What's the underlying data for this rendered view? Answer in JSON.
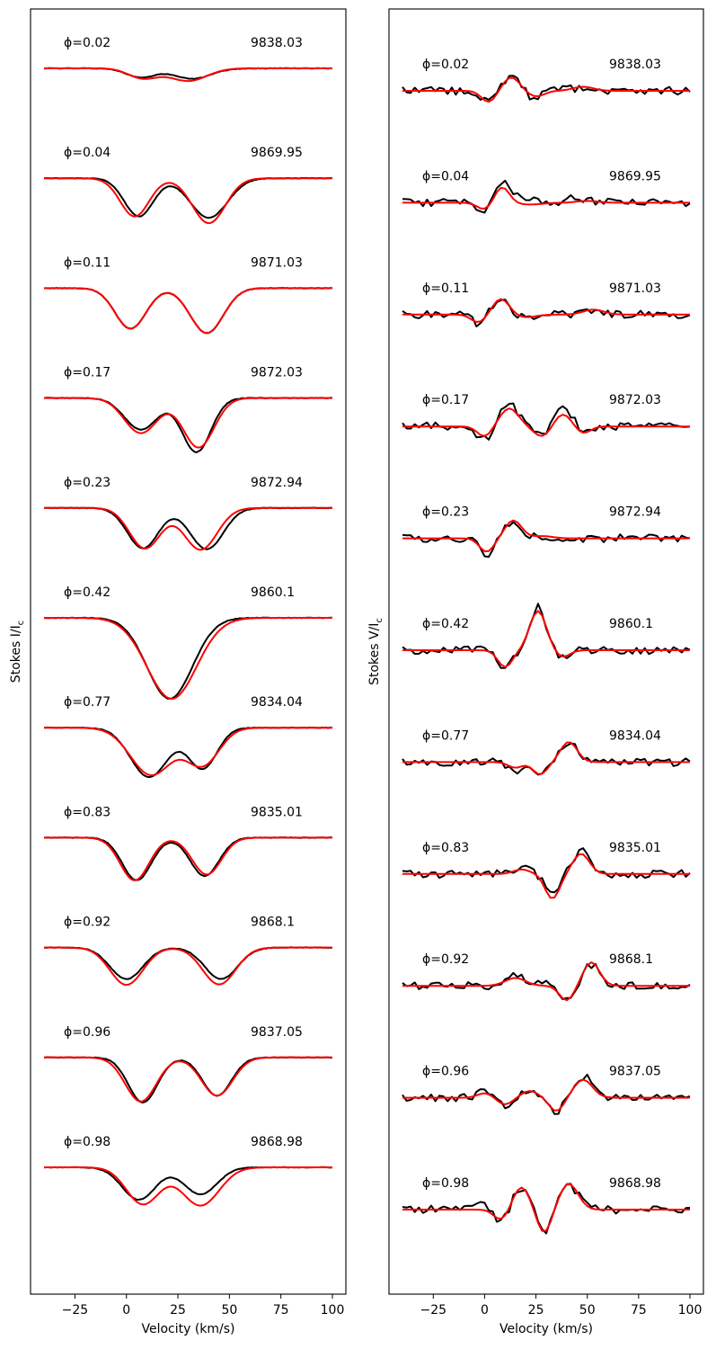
{
  "chart_data": [
    {
      "type": "line",
      "panel": "stokes-i",
      "title": "",
      "xlabel": "Velocity (km/s)",
      "ylabel": "Stokes I/I",
      "ylabel_sub": "c",
      "xlim": [
        -40,
        100
      ],
      "xticks": [
        -25,
        0,
        25,
        50,
        75,
        100
      ],
      "xtick_labels": [
        "−25",
        "0",
        "25",
        "50",
        "75",
        "100"
      ],
      "grid": false,
      "legend": "none",
      "series_names": [
        "observed",
        "model"
      ],
      "series_colors": {
        "observed": "#000000",
        "model": "#ff0000"
      },
      "phases": [
        {
          "phase": "ϕ=0.02",
          "date": "9838.03",
          "observed": [
            {
              "center": 7,
              "width": 7,
              "depth": 0.2
            },
            {
              "center": 32,
              "width": 9,
              "depth": 0.23
            }
          ],
          "model": [
            {
              "center": 8,
              "width": 7,
              "depth": 0.22
            },
            {
              "center": 30,
              "width": 9,
              "depth": 0.28
            }
          ]
        },
        {
          "phase": "ϕ=0.04",
          "date": "9869.95",
          "observed": [
            {
              "center": 6,
              "width": 7,
              "depth": 0.85
            },
            {
              "center": 40,
              "width": 9,
              "depth": 0.88
            }
          ],
          "model": [
            {
              "center": 4,
              "width": 7,
              "depth": 0.85
            },
            {
              "center": 40,
              "width": 8,
              "depth": 1.0
            }
          ]
        },
        {
          "phase": "ϕ=0.11",
          "date": "9871.03",
          "observed": [
            {
              "center": 2,
              "width": 7.5,
              "depth": 0.9
            },
            {
              "center": 39,
              "width": 8,
              "depth": 1.0
            }
          ],
          "model": [
            {
              "center": 2,
              "width": 7.5,
              "depth": 0.9
            },
            {
              "center": 39,
              "width": 8,
              "depth": 1.0
            }
          ]
        },
        {
          "phase": "ϕ=0.17",
          "date": "9872.03",
          "observed": [
            {
              "center": 7,
              "width": 8,
              "depth": 0.7
            },
            {
              "center": 34,
              "width": 7,
              "depth": 1.2
            }
          ],
          "model": [
            {
              "center": 7,
              "width": 8,
              "depth": 0.78
            },
            {
              "center": 35,
              "width": 7.5,
              "depth": 1.1
            }
          ]
        },
        {
          "phase": "ϕ=0.23",
          "date": "9872.94",
          "observed": [
            {
              "center": 8,
              "width": 7.5,
              "depth": 0.9
            },
            {
              "center": 39,
              "width": 8,
              "depth": 0.92
            }
          ],
          "model": [
            {
              "center": 9,
              "width": 7.5,
              "depth": 0.9
            },
            {
              "center": 36,
              "width": 8,
              "depth": 0.93
            }
          ]
        },
        {
          "phase": "ϕ=0.42",
          "date": "9860.1",
          "observed": [
            {
              "center": 21,
              "width": 11,
              "depth": 1.8
            }
          ],
          "model": [
            {
              "center": 22,
              "width": 12,
              "depth": 1.8
            }
          ]
        },
        {
          "phase": "ϕ=0.77",
          "date": "9834.04",
          "observed": [
            {
              "center": 11,
              "width": 9,
              "depth": 1.1
            },
            {
              "center": 37,
              "width": 7,
              "depth": 0.9
            }
          ],
          "model": [
            {
              "center": 12,
              "width": 10,
              "depth": 1.05
            },
            {
              "center": 37,
              "width": 8,
              "depth": 0.82
            }
          ]
        },
        {
          "phase": "ϕ=0.83",
          "date": "9835.01",
          "observed": [
            {
              "center": 5,
              "width": 7,
              "depth": 0.95
            },
            {
              "center": 38,
              "width": 7,
              "depth": 0.85
            }
          ],
          "model": [
            {
              "center": 4,
              "width": 7,
              "depth": 0.95
            },
            {
              "center": 39,
              "width": 7,
              "depth": 0.82
            }
          ]
        },
        {
          "phase": "ϕ=0.92",
          "date": "9868.1",
          "observed": [
            {
              "center": 0,
              "width": 8,
              "depth": 0.7
            },
            {
              "center": 46,
              "width": 8,
              "depth": 0.7
            }
          ],
          "model": [
            {
              "center": 0,
              "width": 8,
              "depth": 0.83
            },
            {
              "center": 45,
              "width": 8,
              "depth": 0.82
            }
          ]
        },
        {
          "phase": "ϕ=0.96",
          "date": "9837.05",
          "observed": [
            {
              "center": 8,
              "width": 7,
              "depth": 1.0
            },
            {
              "center": 44,
              "width": 7,
              "depth": 0.85
            }
          ],
          "model": [
            {
              "center": 7,
              "width": 7.5,
              "depth": 0.98
            },
            {
              "center": 44,
              "width": 7.5,
              "depth": 0.85
            }
          ]
        },
        {
          "phase": "ϕ=0.98",
          "date": "9868.98",
          "observed": [
            {
              "center": 6,
              "width": 8,
              "depth": 0.72
            },
            {
              "center": 36,
              "width": 8,
              "depth": 0.6
            }
          ],
          "model": [
            {
              "center": 8,
              "width": 8,
              "depth": 0.82
            },
            {
              "center": 36,
              "width": 9,
              "depth": 0.85
            }
          ]
        }
      ]
    },
    {
      "type": "line",
      "panel": "stokes-v",
      "title": "",
      "xlabel": "Velocity (km/s)",
      "ylabel": "Stokes V/I",
      "ylabel_sub": "c",
      "xlim": [
        -40,
        100
      ],
      "xticks": [
        -25,
        0,
        25,
        50,
        75,
        100
      ],
      "xtick_labels": [
        "−25",
        "0",
        "25",
        "50",
        "75",
        "100"
      ],
      "grid": false,
      "legend": "none",
      "series_names": [
        "observed",
        "model"
      ],
      "series_colors": {
        "observed": "#000000",
        "model": "#ff0000"
      },
      "noise_amplitude": 0.08,
      "phases": [
        {
          "phase": "ϕ=0.02",
          "date": "9838.03",
          "observed": [
            {
              "center": 2,
              "width": 3.5,
              "amp": -0.45
            },
            {
              "center": 13,
              "width": 4,
              "amp": 0.6
            },
            {
              "center": 24,
              "width": 4,
              "amp": -0.3
            },
            {
              "center": 40,
              "width": 6,
              "amp": 0.12
            }
          ],
          "model": [
            {
              "center": 2,
              "width": 3.5,
              "amp": -0.5
            },
            {
              "center": 13,
              "width": 4,
              "amp": 0.6
            },
            {
              "center": 25,
              "width": 4,
              "amp": -0.25
            },
            {
              "center": 48,
              "width": 5,
              "amp": 0.18
            }
          ]
        },
        {
          "phase": "ϕ=0.04",
          "date": "9869.95",
          "observed": [
            {
              "center": 0,
              "width": 3.5,
              "amp": -0.35
            },
            {
              "center": 9,
              "width": 3.5,
              "amp": 0.85
            },
            {
              "center": 20,
              "width": 5,
              "amp": 0.2
            },
            {
              "center": 45,
              "width": 6,
              "amp": 0.2
            }
          ],
          "model": [
            {
              "center": 0,
              "width": 3.5,
              "amp": -0.3
            },
            {
              "center": 8.5,
              "width": 3.5,
              "amp": 0.7
            },
            {
              "center": 22,
              "width": 6,
              "amp": -0.08
            },
            {
              "center": 50,
              "width": 5,
              "amp": 0.08
            }
          ]
        },
        {
          "phase": "ϕ=0.11",
          "date": "9871.03",
          "observed": [
            {
              "center": -3,
              "width": 3.5,
              "amp": -0.4
            },
            {
              "center": 8,
              "width": 4,
              "amp": 0.75
            },
            {
              "center": 20,
              "width": 5,
              "amp": -0.1
            },
            {
              "center": 52,
              "width": 5,
              "amp": 0.18
            }
          ],
          "model": [
            {
              "center": -3,
              "width": 3.5,
              "amp": -0.35
            },
            {
              "center": 8,
              "width": 4,
              "amp": 0.7
            },
            {
              "center": 20,
              "width": 5,
              "amp": -0.12
            },
            {
              "center": 53,
              "width": 5,
              "amp": 0.22
            }
          ]
        },
        {
          "phase": "ϕ=0.17",
          "date": "9872.03",
          "observed": [
            {
              "center": 0,
              "width": 3.5,
              "amp": -0.6
            },
            {
              "center": 12,
              "width": 4,
              "amp": 1.1
            },
            {
              "center": 28,
              "width": 3.5,
              "amp": -0.45
            },
            {
              "center": 38,
              "width": 4,
              "amp": 0.9
            },
            {
              "center": 49,
              "width": 3,
              "amp": -0.25
            }
          ],
          "model": [
            {
              "center": 0,
              "width": 3.5,
              "amp": -0.45
            },
            {
              "center": 12,
              "width": 4.5,
              "amp": 0.8
            },
            {
              "center": 28,
              "width": 4,
              "amp": -0.45
            },
            {
              "center": 38,
              "width": 4,
              "amp": 0.55
            },
            {
              "center": 48,
              "width": 3.5,
              "amp": -0.3
            }
          ]
        },
        {
          "phase": "ϕ=0.23",
          "date": "9872.94",
          "observed": [
            {
              "center": 1,
              "width": 3.5,
              "amp": -0.8
            },
            {
              "center": 14,
              "width": 4,
              "amp": 0.8
            },
            {
              "center": 28,
              "width": 5,
              "amp": 0.1
            }
          ],
          "model": [
            {
              "center": 1,
              "width": 3.5,
              "amp": -0.6
            },
            {
              "center": 14,
              "width": 4,
              "amp": 0.8
            },
            {
              "center": 28,
              "width": 5,
              "amp": 0.1
            }
          ]
        },
        {
          "phase": "ϕ=0.42",
          "date": "9860.1",
          "observed": [
            {
              "center": 10,
              "width": 3.5,
              "amp": -0.8
            },
            {
              "center": 26,
              "width": 4,
              "amp": 1.9
            },
            {
              "center": 38,
              "width": 3.5,
              "amp": -0.3
            }
          ],
          "model": [
            {
              "center": 10,
              "width": 3.5,
              "amp": -0.75
            },
            {
              "center": 26,
              "width": 4,
              "amp": 1.75
            },
            {
              "center": 38,
              "width": 3.5,
              "amp": -0.3
            }
          ]
        },
        {
          "phase": "ϕ=0.77",
          "date": "9834.04",
          "observed": [
            {
              "center": 15,
              "width": 3.5,
              "amp": -0.4
            },
            {
              "center": 27,
              "width": 3.5,
              "amp": -0.6
            },
            {
              "center": 41,
              "width": 4,
              "amp": 0.9
            }
          ],
          "model": [
            {
              "center": 15,
              "width": 3.5,
              "amp": -0.25
            },
            {
              "center": 27,
              "width": 3.5,
              "amp": -0.55
            },
            {
              "center": 41,
              "width": 4,
              "amp": 0.9
            }
          ]
        },
        {
          "phase": "ϕ=0.83",
          "date": "9835.01",
          "observed": [
            {
              "center": 18,
              "width": 4,
              "amp": 0.3
            },
            {
              "center": 33,
              "width": 3.5,
              "amp": -1.0
            },
            {
              "center": 47,
              "width": 4,
              "amp": 1.0
            }
          ],
          "model": [
            {
              "center": 18,
              "width": 4,
              "amp": 0.2
            },
            {
              "center": 33,
              "width": 3.5,
              "amp": -1.1
            },
            {
              "center": 47,
              "width": 4,
              "amp": 0.9
            }
          ]
        },
        {
          "phase": "ϕ=0.92",
          "date": "9868.1",
          "observed": [
            {
              "center": 15,
              "width": 5,
              "amp": 0.5
            },
            {
              "center": 30,
              "width": 4,
              "amp": 0.2
            },
            {
              "center": 40,
              "width": 3.5,
              "amp": -0.7
            },
            {
              "center": 52,
              "width": 4,
              "amp": 0.95
            }
          ],
          "model": [
            {
              "center": 15,
              "width": 5,
              "amp": 0.35
            },
            {
              "center": 40,
              "width": 3.5,
              "amp": -0.65
            },
            {
              "center": 52,
              "width": 4,
              "amp": 1.05
            }
          ]
        },
        {
          "phase": "ϕ=0.96",
          "date": "9837.05",
          "observed": [
            {
              "center": 0,
              "width": 3.5,
              "amp": 0.35
            },
            {
              "center": 10,
              "width": 3.5,
              "amp": -0.35
            },
            {
              "center": 22,
              "width": 4,
              "amp": 0.3
            },
            {
              "center": 35,
              "width": 3.5,
              "amp": -0.6
            },
            {
              "center": 49,
              "width": 4.5,
              "amp": 0.9
            }
          ],
          "model": [
            {
              "center": 0,
              "width": 3.5,
              "amp": 0.2
            },
            {
              "center": 10,
              "width": 3.5,
              "amp": -0.3
            },
            {
              "center": 22,
              "width": 4,
              "amp": 0.3
            },
            {
              "center": 35,
              "width": 3.5,
              "amp": -0.6
            },
            {
              "center": 48,
              "width": 4.5,
              "amp": 0.8
            }
          ]
        },
        {
          "phase": "ϕ=0.98",
          "date": "9868.98",
          "observed": [
            {
              "center": -3,
              "width": 5,
              "amp": 0.2
            },
            {
              "center": 8,
              "width": 3.5,
              "amp": -0.5
            },
            {
              "center": 18,
              "width": 4,
              "amp": 1.0
            },
            {
              "center": 29,
              "width": 3.5,
              "amp": -1.1
            },
            {
              "center": 41,
              "width": 4.5,
              "amp": 1.1
            }
          ],
          "model": [
            {
              "center": 8,
              "width": 3.5,
              "amp": -0.45
            },
            {
              "center": 18,
              "width": 4,
              "amp": 1.0
            },
            {
              "center": 29,
              "width": 3.5,
              "amp": -1.05
            },
            {
              "center": 41,
              "width": 4.5,
              "amp": 1.15
            }
          ]
        }
      ]
    }
  ]
}
